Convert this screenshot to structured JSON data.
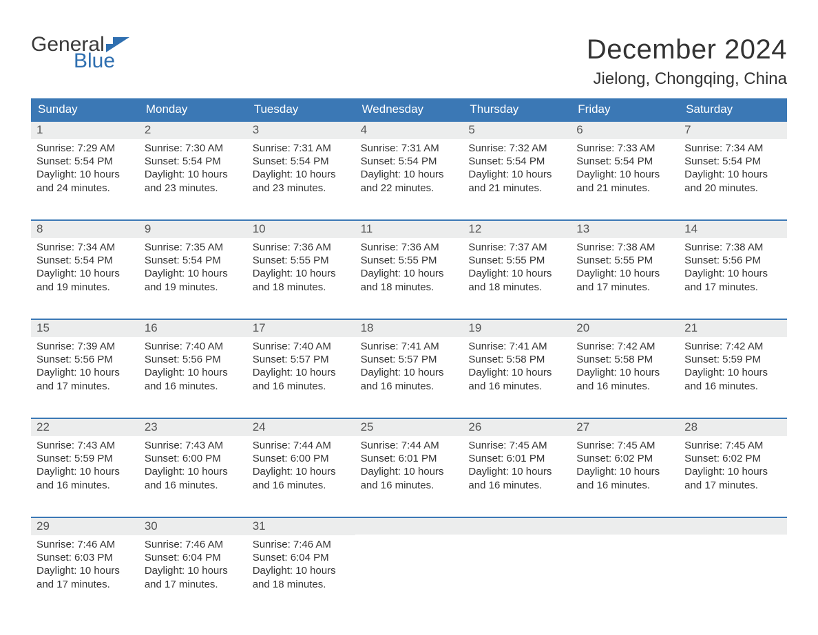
{
  "logo": {
    "text_top": "General",
    "text_bottom": "Blue",
    "flag_color": "#2f6fb0"
  },
  "title": "December 2024",
  "location": "Jielong, Chongqing, China",
  "colors": {
    "header_bg": "#3b78b5",
    "header_text": "#ffffff",
    "daynum_bg": "#eceded",
    "daynum_text": "#555555",
    "body_text": "#333333",
    "week_border": "#3b78b5"
  },
  "weekdays": [
    "Sunday",
    "Monday",
    "Tuesday",
    "Wednesday",
    "Thursday",
    "Friday",
    "Saturday"
  ],
  "labels": {
    "sunrise": "Sunrise:",
    "sunset": "Sunset:",
    "daylight": "Daylight:"
  },
  "weeks": [
    [
      {
        "day": 1,
        "sunrise": "7:29 AM",
        "sunset": "5:54 PM",
        "daylight": "10 hours and 24 minutes."
      },
      {
        "day": 2,
        "sunrise": "7:30 AM",
        "sunset": "5:54 PM",
        "daylight": "10 hours and 23 minutes."
      },
      {
        "day": 3,
        "sunrise": "7:31 AM",
        "sunset": "5:54 PM",
        "daylight": "10 hours and 23 minutes."
      },
      {
        "day": 4,
        "sunrise": "7:31 AM",
        "sunset": "5:54 PM",
        "daylight": "10 hours and 22 minutes."
      },
      {
        "day": 5,
        "sunrise": "7:32 AM",
        "sunset": "5:54 PM",
        "daylight": "10 hours and 21 minutes."
      },
      {
        "day": 6,
        "sunrise": "7:33 AM",
        "sunset": "5:54 PM",
        "daylight": "10 hours and 21 minutes."
      },
      {
        "day": 7,
        "sunrise": "7:34 AM",
        "sunset": "5:54 PM",
        "daylight": "10 hours and 20 minutes."
      }
    ],
    [
      {
        "day": 8,
        "sunrise": "7:34 AM",
        "sunset": "5:54 PM",
        "daylight": "10 hours and 19 minutes."
      },
      {
        "day": 9,
        "sunrise": "7:35 AM",
        "sunset": "5:54 PM",
        "daylight": "10 hours and 19 minutes."
      },
      {
        "day": 10,
        "sunrise": "7:36 AM",
        "sunset": "5:55 PM",
        "daylight": "10 hours and 18 minutes."
      },
      {
        "day": 11,
        "sunrise": "7:36 AM",
        "sunset": "5:55 PM",
        "daylight": "10 hours and 18 minutes."
      },
      {
        "day": 12,
        "sunrise": "7:37 AM",
        "sunset": "5:55 PM",
        "daylight": "10 hours and 18 minutes."
      },
      {
        "day": 13,
        "sunrise": "7:38 AM",
        "sunset": "5:55 PM",
        "daylight": "10 hours and 17 minutes."
      },
      {
        "day": 14,
        "sunrise": "7:38 AM",
        "sunset": "5:56 PM",
        "daylight": "10 hours and 17 minutes."
      }
    ],
    [
      {
        "day": 15,
        "sunrise": "7:39 AM",
        "sunset": "5:56 PM",
        "daylight": "10 hours and 17 minutes."
      },
      {
        "day": 16,
        "sunrise": "7:40 AM",
        "sunset": "5:56 PM",
        "daylight": "10 hours and 16 minutes."
      },
      {
        "day": 17,
        "sunrise": "7:40 AM",
        "sunset": "5:57 PM",
        "daylight": "10 hours and 16 minutes."
      },
      {
        "day": 18,
        "sunrise": "7:41 AM",
        "sunset": "5:57 PM",
        "daylight": "10 hours and 16 minutes."
      },
      {
        "day": 19,
        "sunrise": "7:41 AM",
        "sunset": "5:58 PM",
        "daylight": "10 hours and 16 minutes."
      },
      {
        "day": 20,
        "sunrise": "7:42 AM",
        "sunset": "5:58 PM",
        "daylight": "10 hours and 16 minutes."
      },
      {
        "day": 21,
        "sunrise": "7:42 AM",
        "sunset": "5:59 PM",
        "daylight": "10 hours and 16 minutes."
      }
    ],
    [
      {
        "day": 22,
        "sunrise": "7:43 AM",
        "sunset": "5:59 PM",
        "daylight": "10 hours and 16 minutes."
      },
      {
        "day": 23,
        "sunrise": "7:43 AM",
        "sunset": "6:00 PM",
        "daylight": "10 hours and 16 minutes."
      },
      {
        "day": 24,
        "sunrise": "7:44 AM",
        "sunset": "6:00 PM",
        "daylight": "10 hours and 16 minutes."
      },
      {
        "day": 25,
        "sunrise": "7:44 AM",
        "sunset": "6:01 PM",
        "daylight": "10 hours and 16 minutes."
      },
      {
        "day": 26,
        "sunrise": "7:45 AM",
        "sunset": "6:01 PM",
        "daylight": "10 hours and 16 minutes."
      },
      {
        "day": 27,
        "sunrise": "7:45 AM",
        "sunset": "6:02 PM",
        "daylight": "10 hours and 16 minutes."
      },
      {
        "day": 28,
        "sunrise": "7:45 AM",
        "sunset": "6:02 PM",
        "daylight": "10 hours and 17 minutes."
      }
    ],
    [
      {
        "day": 29,
        "sunrise": "7:46 AM",
        "sunset": "6:03 PM",
        "daylight": "10 hours and 17 minutes."
      },
      {
        "day": 30,
        "sunrise": "7:46 AM",
        "sunset": "6:04 PM",
        "daylight": "10 hours and 17 minutes."
      },
      {
        "day": 31,
        "sunrise": "7:46 AM",
        "sunset": "6:04 PM",
        "daylight": "10 hours and 18 minutes."
      },
      null,
      null,
      null,
      null
    ]
  ]
}
